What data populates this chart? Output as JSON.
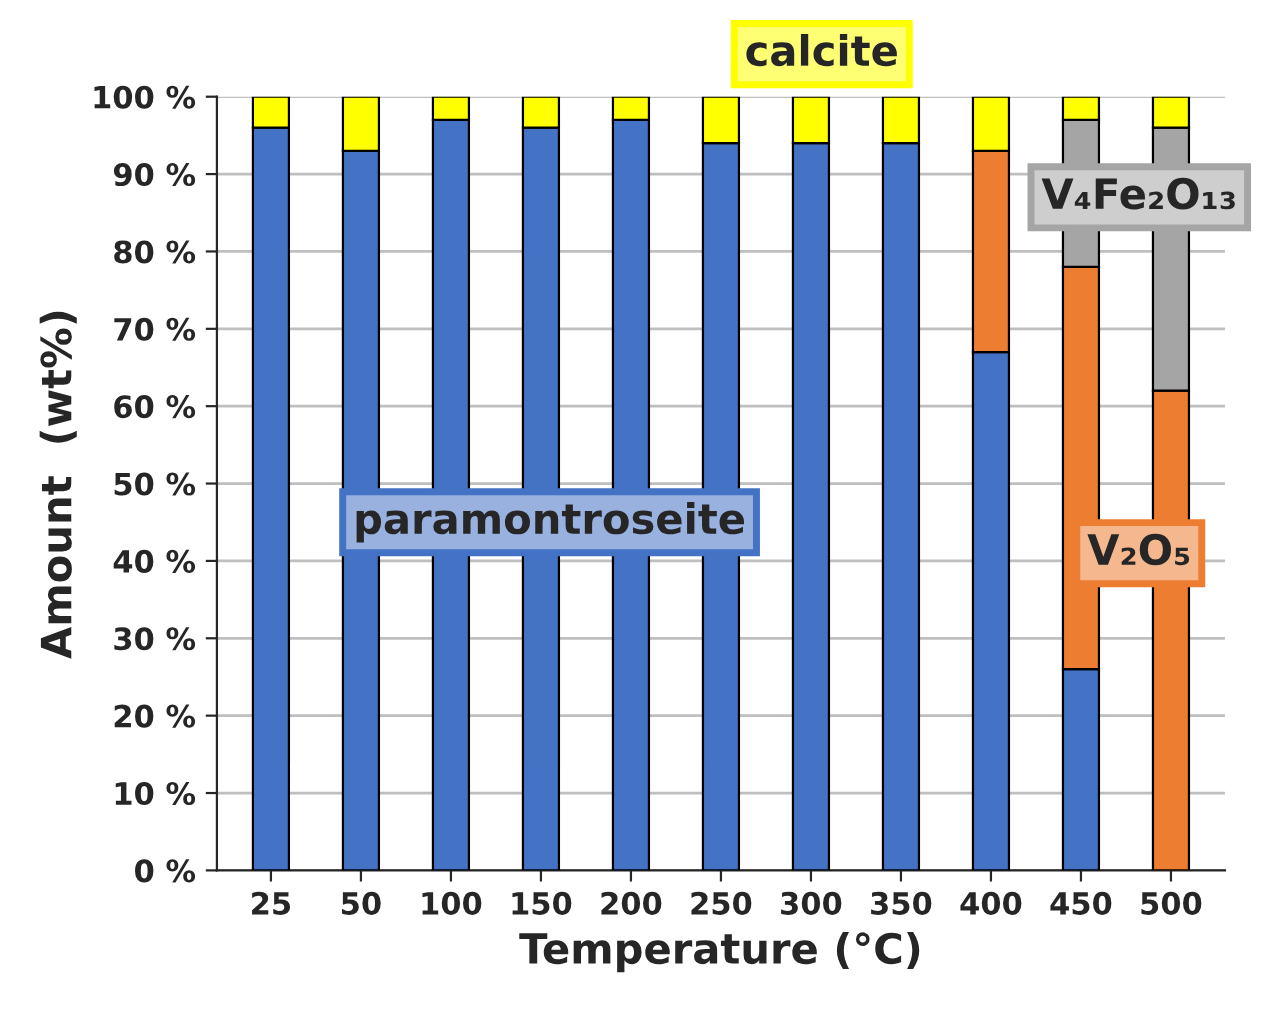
{
  "chart_data": {
    "type": "bar",
    "stacked": true,
    "xlabel": "Temperature (°C)",
    "ylabel": "Amount  (wt%)",
    "categories": [
      "25",
      "50",
      "100",
      "150",
      "200",
      "250",
      "300",
      "350",
      "400",
      "450",
      "500"
    ],
    "series": [
      {
        "name": "paramontroseite",
        "color": "#4472c4",
        "values": [
          96,
          93,
          97,
          96,
          97,
          94,
          94,
          94,
          67,
          26,
          0
        ]
      },
      {
        "name": "V₂O₅",
        "color": "#ed7d31",
        "values": [
          0,
          0,
          0,
          0,
          0,
          0,
          0,
          0,
          26,
          52,
          62
        ]
      },
      {
        "name": "V₄Fe₂O₁₃",
        "color": "#a5a5a5",
        "values": [
          0,
          0,
          0,
          0,
          0,
          0,
          0,
          0,
          0,
          19,
          34
        ]
      },
      {
        "name": "calcite",
        "color": "#ffff00",
        "values": [
          4,
          7,
          3,
          4,
          3,
          6,
          6,
          6,
          7,
          3,
          4
        ]
      }
    ],
    "ylim": [
      0,
      100
    ],
    "yticks": [
      {
        "value": 0,
        "label": "0 %"
      },
      {
        "value": 10,
        "label": "10 %"
      },
      {
        "value": 20,
        "label": "20 %"
      },
      {
        "value": 30,
        "label": "30 %"
      },
      {
        "value": 40,
        "label": "40 %"
      },
      {
        "value": 50,
        "label": "50 %"
      },
      {
        "value": 60,
        "label": "60 %"
      },
      {
        "value": 70,
        "label": "70 %"
      },
      {
        "value": 80,
        "label": "80 %"
      },
      {
        "value": 90,
        "label": "90 %"
      },
      {
        "value": 100,
        "label": "100 %"
      }
    ],
    "grid": "y",
    "legend": false
  }
}
